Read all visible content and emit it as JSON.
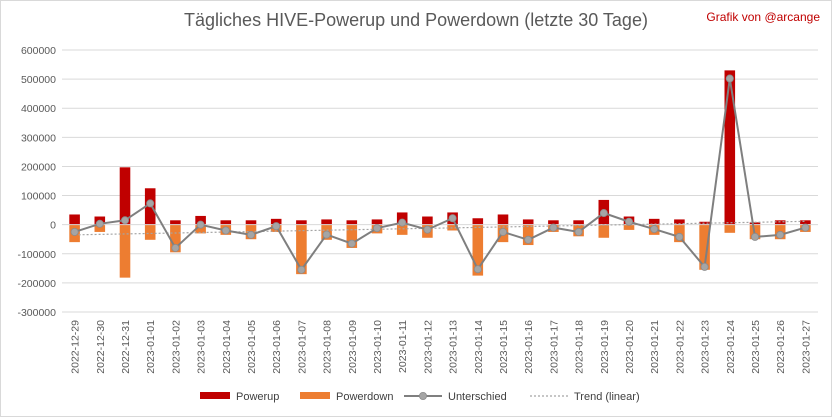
{
  "chart_data": {
    "type": "bar",
    "title": "Tägliches HIVE-Powerup und Powerdown (letzte 30 Tage)",
    "credit": "Grafik von @arcange",
    "xlabel": "",
    "ylabel": "",
    "ylim": [
      -300000,
      600000
    ],
    "yticks": [
      "600000",
      "500000",
      "400000",
      "300000",
      "200000",
      "100000",
      "0",
      "-100000",
      "-200000",
      "-300000"
    ],
    "ytick_values": [
      600000,
      500000,
      400000,
      300000,
      200000,
      100000,
      0,
      -100000,
      -200000,
      -300000
    ],
    "grid": true,
    "legend_position": "bottom",
    "categories": [
      "2022-12-29",
      "2022-12-30",
      "2022-12-31",
      "2023-01-01",
      "2023-01-02",
      "2023-01-03",
      "2023-01-04",
      "2023-01-05",
      "2023-01-06",
      "2023-01-07",
      "2023-01-08",
      "2023-01-09",
      "2023-01-10",
      "2023-01-11",
      "2023-01-12",
      "2023-01-13",
      "2023-01-14",
      "2023-01-15",
      "2023-01-16",
      "2023-01-17",
      "2023-01-18",
      "2023-01-19",
      "2023-01-20",
      "2023-01-21",
      "2023-01-22",
      "2023-01-23",
      "2023-01-24",
      "2023-01-25",
      "2023-01-26",
      "2023-01-27"
    ],
    "series": [
      {
        "name": "Powerup",
        "kind": "bar",
        "color": "#c00000",
        "values": [
          35000,
          28000,
          197000,
          125000,
          15000,
          30000,
          15000,
          15000,
          20000,
          15000,
          18000,
          15000,
          18000,
          42000,
          28000,
          42000,
          22000,
          35000,
          18000,
          15000,
          15000,
          85000,
          28000,
          20000,
          18000,
          10000,
          530000,
          8000,
          15000,
          15000
        ]
      },
      {
        "name": "Powerdown",
        "kind": "bar",
        "color": "#ed7d31",
        "values": [
          -60000,
          -25000,
          -182000,
          -52000,
          -95000,
          -30000,
          -35000,
          -50000,
          -25000,
          -170000,
          -52000,
          -80000,
          -30000,
          -35000,
          -45000,
          -20000,
          -175000,
          -60000,
          -70000,
          -25000,
          -40000,
          -45000,
          -18000,
          -35000,
          -60000,
          -155000,
          -28000,
          -50000,
          -50000,
          -25000
        ]
      },
      {
        "name": "Unterschied",
        "kind": "line",
        "color": "#7f7f7f",
        "values": [
          -25000,
          3000,
          15000,
          73000,
          -80000,
          0,
          -20000,
          -35000,
          -5000,
          -155000,
          -34000,
          -65000,
          -12000,
          7000,
          -17000,
          22000,
          -153000,
          -25000,
          -52000,
          -10000,
          -25000,
          40000,
          10000,
          -15000,
          -42000,
          -145000,
          502000,
          -42000,
          -35000,
          -10000
        ]
      },
      {
        "name": "Trend (linear)",
        "kind": "trend",
        "color": "#a5a5a5",
        "values": [
          -35000,
          -33400,
          -31800,
          -30200,
          -28600,
          -27000,
          -25400,
          -23800,
          -22200,
          -20600,
          -19000,
          -17400,
          -15800,
          -14200,
          -12600,
          -11000,
          -9400,
          -7800,
          -6200,
          -4600,
          -3000,
          -1400,
          200,
          1800,
          3400,
          5000,
          6600,
          8200,
          9800,
          11400
        ]
      }
    ]
  }
}
